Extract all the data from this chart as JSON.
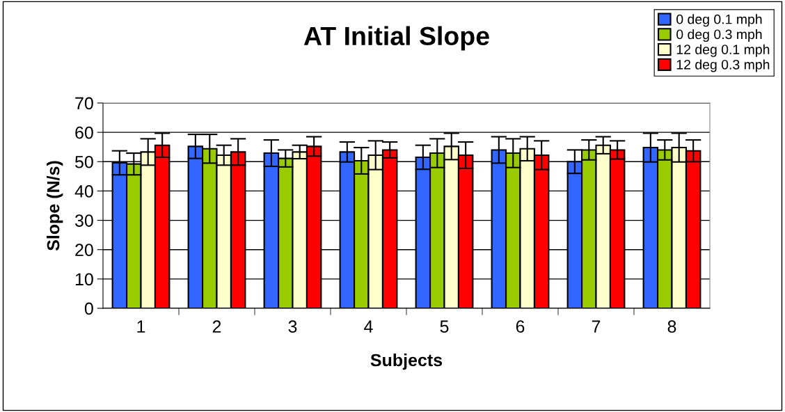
{
  "chart_data": {
    "type": "bar",
    "title": "AT Initial Slope",
    "xlabel": "Subjects",
    "ylabel": "Slope (N/s)",
    "categories": [
      "1",
      "2",
      "3",
      "4",
      "5",
      "6",
      "7",
      "8"
    ],
    "series": [
      {
        "name": "0 deg 0.1 mph",
        "color": "#3366ff",
        "values": [
          49.6,
          55.2,
          52.9,
          53.3,
          51.5,
          54.0,
          50.0,
          54.8
        ],
        "errors": [
          4.1,
          4.1,
          4.5,
          3.4,
          4.1,
          4.5,
          4.0,
          4.9
        ]
      },
      {
        "name": "0 deg 0.3 mph",
        "color": "#99cc00",
        "values": [
          49.2,
          54.4,
          51.1,
          50.3,
          52.9,
          52.9,
          54.0,
          54.0
        ],
        "errors": [
          3.7,
          4.9,
          2.9,
          4.5,
          4.9,
          4.9,
          3.4,
          3.4
        ]
      },
      {
        "name": "12 deg 0.1 mph",
        "color": "#ffffcc",
        "values": [
          53.3,
          52.2,
          53.3,
          52.2,
          55.2,
          54.4,
          55.6,
          54.8
        ],
        "errors": [
          4.5,
          3.4,
          2.3,
          4.9,
          4.5,
          4.1,
          2.9,
          4.9
        ]
      },
      {
        "name": "12 deg 0.3 mph",
        "color": "#ff0000",
        "values": [
          55.6,
          53.3,
          55.2,
          54.0,
          52.2,
          52.2,
          54.0,
          53.7
        ],
        "errors": [
          4.1,
          4.5,
          3.3,
          2.7,
          4.5,
          4.9,
          3.1,
          3.7
        ]
      }
    ],
    "ylim": [
      0,
      70
    ],
    "yticks": [
      0,
      10,
      20,
      30,
      40,
      50,
      60,
      70
    ],
    "grid": "y",
    "legend": "top right"
  }
}
